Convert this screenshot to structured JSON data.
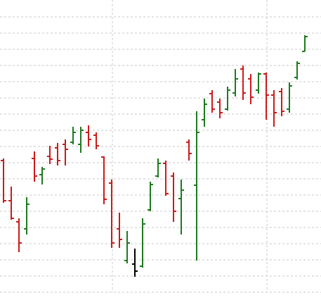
{
  "chart_data": {
    "type": "ohlc",
    "categories": [
      null,
      null,
      null,
      null,
      null,
      null,
      null,
      null,
      null,
      null,
      null,
      null,
      null,
      null,
      null,
      null,
      null,
      null,
      null,
      null,
      null,
      null,
      null,
      null,
      null,
      null,
      null,
      null,
      null,
      null,
      null,
      null,
      null,
      null,
      null,
      null,
      null,
      null,
      null,
      null
    ],
    "open": [
      198,
      141,
      111,
      101,
      201,
      178,
      204,
      216,
      221,
      224,
      221,
      238,
      234,
      203,
      166,
      101,
      56,
      51,
      48,
      128,
      176,
      194,
      176,
      144,
      224,
      163,
      256,
      293,
      281,
      271,
      294,
      328,
      314,
      298,
      321,
      291,
      296,
      271,
      316,
      353
    ],
    "high": [
      201,
      161,
      116,
      146,
      211,
      189,
      219,
      223,
      228,
      246,
      246,
      248,
      238,
      204,
      171,
      124,
      98,
      73,
      116,
      168,
      201,
      198,
      181,
      171,
      228,
      268,
      286,
      298,
      286,
      303,
      328,
      333,
      321,
      323,
      323,
      298,
      301,
      309,
      339,
      376
    ],
    "low": [
      138,
      114,
      68,
      93,
      168,
      164,
      193,
      191,
      191,
      221,
      209,
      218,
      214,
      136,
      74,
      74,
      52,
      33,
      46,
      126,
      174,
      148,
      111,
      93,
      198,
      56,
      246,
      266,
      258,
      269,
      289,
      284,
      278,
      293,
      256,
      246,
      261,
      266,
      313,
      353
    ],
    "close": [
      141,
      116,
      81,
      136,
      176,
      186,
      200,
      198,
      214,
      238,
      241,
      228,
      219,
      143,
      81,
      86,
      81,
      41,
      108,
      164,
      194,
      151,
      126,
      156,
      208,
      238,
      278,
      271,
      266,
      298,
      314,
      294,
      288,
      321,
      291,
      266,
      268,
      304,
      336,
      374
    ],
    "colors": [
      "#cc1a1a",
      "#cc1a1a",
      "#cc1a1a",
      "#1e7a1e",
      "#cc1a1a",
      "#1e7a1e",
      "#cc1a1a",
      "#cc1a1a",
      "#cc1a1a",
      "#1e7a1e",
      "#1e7a1e",
      "#cc1a1a",
      "#cc1a1a",
      "#cc1a1a",
      "#cc1a1a",
      "#cc1a1a",
      "#1e7a1e",
      "#000000",
      "#1e7a1e",
      "#1e7a1e",
      "#1e7a1e",
      "#cc1a1a",
      "#cc1a1a",
      "#1e7a1e",
      "#cc1a1a",
      "#1e7a1e",
      "#1e7a1e",
      "#cc1a1a",
      "#cc1a1a",
      "#1e7a1e",
      "#1e7a1e",
      "#cc1a1a",
      "#cc1a1a",
      "#1e7a1e",
      "#cc1a1a",
      "#cc1a1a",
      "#cc1a1a",
      "#1e7a1e",
      "#1e7a1e",
      "#1e7a1e"
    ],
    "ylim": [
      0,
      426
    ],
    "yticks": [
      11,
      34,
      57,
      80,
      103,
      126,
      149,
      172,
      195,
      218,
      241,
      264,
      287,
      310,
      333,
      356,
      379,
      402
    ],
    "grid": true
  }
}
